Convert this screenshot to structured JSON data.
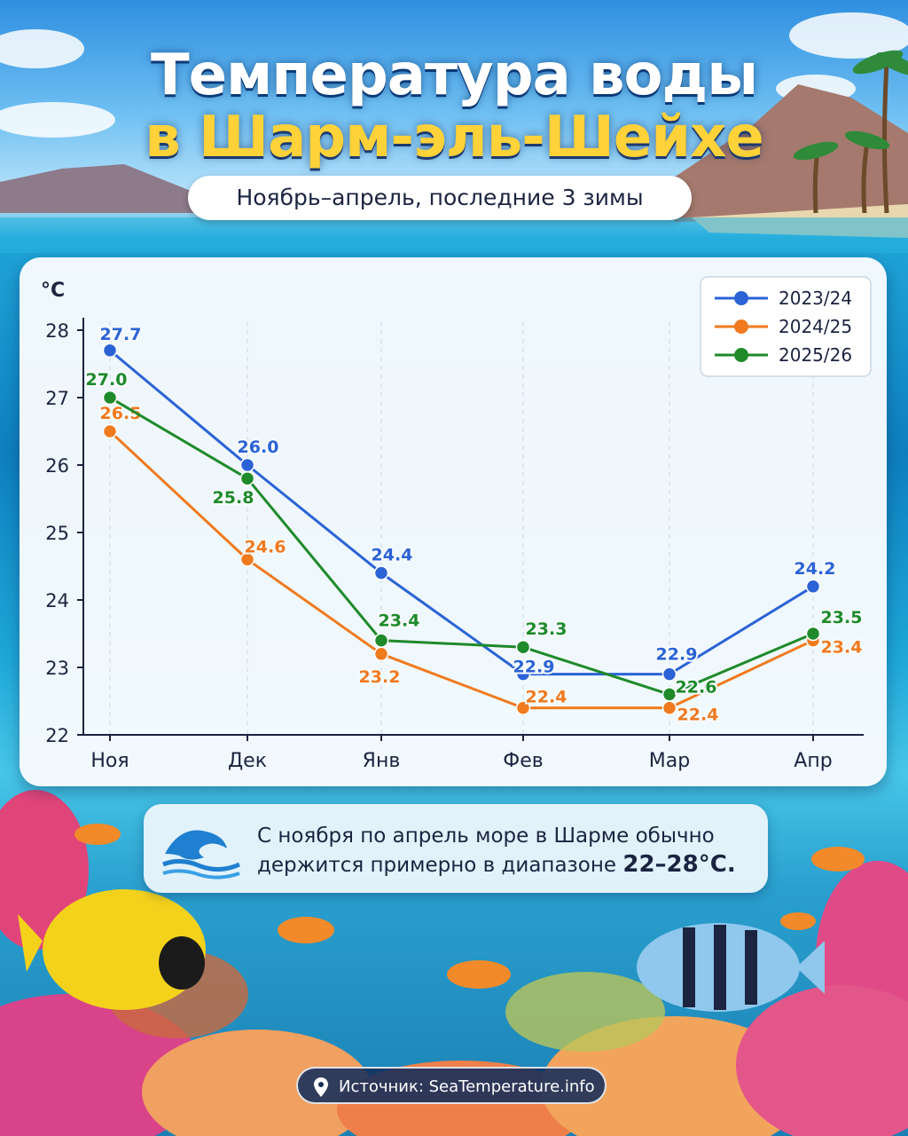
{
  "header": {
    "title_line1": "Температура воды",
    "title_line2": "в Шарм-эль-Шейхе",
    "subtitle": "Ноябрь–апрель, последние 3 зимы"
  },
  "chart_data": {
    "type": "line",
    "title": "",
    "ylabel": "°C",
    "xlabel": "",
    "ylim": [
      22,
      28
    ],
    "yticks": [
      "22",
      "23",
      "24",
      "25",
      "26",
      "27",
      "28"
    ],
    "categories": [
      "Ноя",
      "Дек",
      "Янв",
      "Фев",
      "Мар",
      "Апр"
    ],
    "grid": "vertical dashed",
    "legend_position": "top-right",
    "series": [
      {
        "name": "2023/24",
        "color": "#2b63d6",
        "values": [
          27.7,
          26.0,
          24.4,
          22.9,
          22.9,
          24.2
        ],
        "labels": [
          "27.7",
          "26.0",
          "24.4",
          "22.9",
          "22.9",
          "24.2"
        ]
      },
      {
        "name": "2024/25",
        "color": "#f07a1e",
        "values": [
          26.5,
          24.6,
          23.2,
          22.4,
          22.4,
          23.4
        ],
        "labels": [
          "26.5",
          "24.6",
          "23.2",
          "22.4",
          "22.4",
          "23.4"
        ]
      },
      {
        "name": "2025/26",
        "color": "#1e8a2a",
        "values": [
          27.0,
          25.8,
          23.4,
          23.3,
          22.6,
          23.5
        ],
        "labels": [
          "27.0",
          "25.8",
          "23.4",
          "23.3",
          "22.6",
          "23.5"
        ]
      }
    ]
  },
  "callout": {
    "text_line1": "С ноября по апрель море в Шарме обычно",
    "text_line2_prefix": "держится примерно в диапазоне ",
    "range": "22–28°C."
  },
  "footer": {
    "source": "Источник: SeaTemperature.info",
    "pin_icon": "location-pin-icon"
  }
}
